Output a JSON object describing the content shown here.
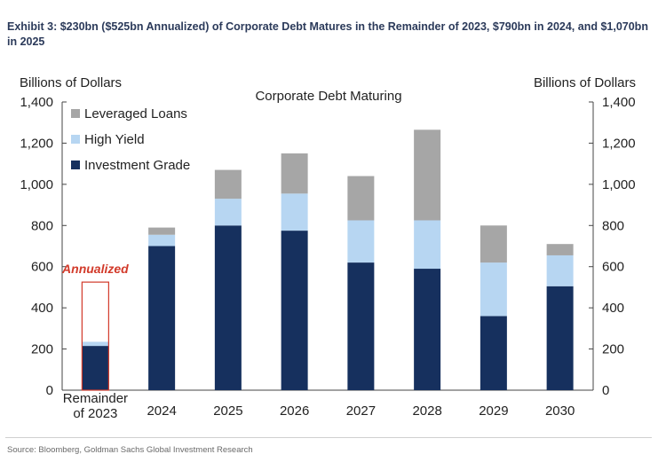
{
  "exhibit_title": "Exhibit 3: $230bn ($525bn Annualized) of Corporate Debt Matures in the Remainder of 2023, $790bn in 2024, and $1,070bn in 2025",
  "source": "Source: Bloomberg, Goldman Sachs Global Investment Research",
  "annotation": "Annualized",
  "colors": {
    "investment_grade": "#16305e",
    "high_yield": "#b7d6f2",
    "leveraged_loans": "#a6a6a6",
    "annotation": "#d23a2a"
  },
  "chart_data": {
    "type": "bar",
    "stacked": true,
    "title": "Corporate Debt Maturing",
    "ylabel_left": "Billions of Dollars",
    "ylabel_right": "Billions of Dollars",
    "ylim": [
      0,
      1400
    ],
    "yticks": [
      "0",
      "200",
      "400",
      "600",
      "800",
      "1,000",
      "1,200",
      "1,400"
    ],
    "ytick_values": [
      0,
      200,
      400,
      600,
      800,
      1000,
      1200,
      1400
    ],
    "categories": [
      "Remainder of 2023",
      "2024",
      "2025",
      "2026",
      "2027",
      "2028",
      "2029",
      "2030"
    ],
    "category_labels": [
      [
        "Remainder",
        "of 2023"
      ],
      [
        "2024"
      ],
      [
        "2025"
      ],
      [
        "2026"
      ],
      [
        "2027"
      ],
      [
        "2028"
      ],
      [
        "2029"
      ],
      [
        "2030"
      ]
    ],
    "legend_position": "top-left",
    "legend_order": [
      "Leveraged Loans",
      "High Yield",
      "Investment Grade"
    ],
    "series": [
      {
        "name": "Investment Grade",
        "values": [
          215,
          700,
          800,
          775,
          620,
          590,
          360,
          505
        ]
      },
      {
        "name": "High Yield",
        "values": [
          20,
          55,
          130,
          180,
          205,
          235,
          260,
          150
        ]
      },
      {
        "name": "Leveraged Loans",
        "values": [
          0,
          35,
          140,
          195,
          215,
          440,
          180,
          55
        ]
      }
    ],
    "annualized_total": 525,
    "annualized_category": "Remainder of 2023",
    "grid": false
  }
}
